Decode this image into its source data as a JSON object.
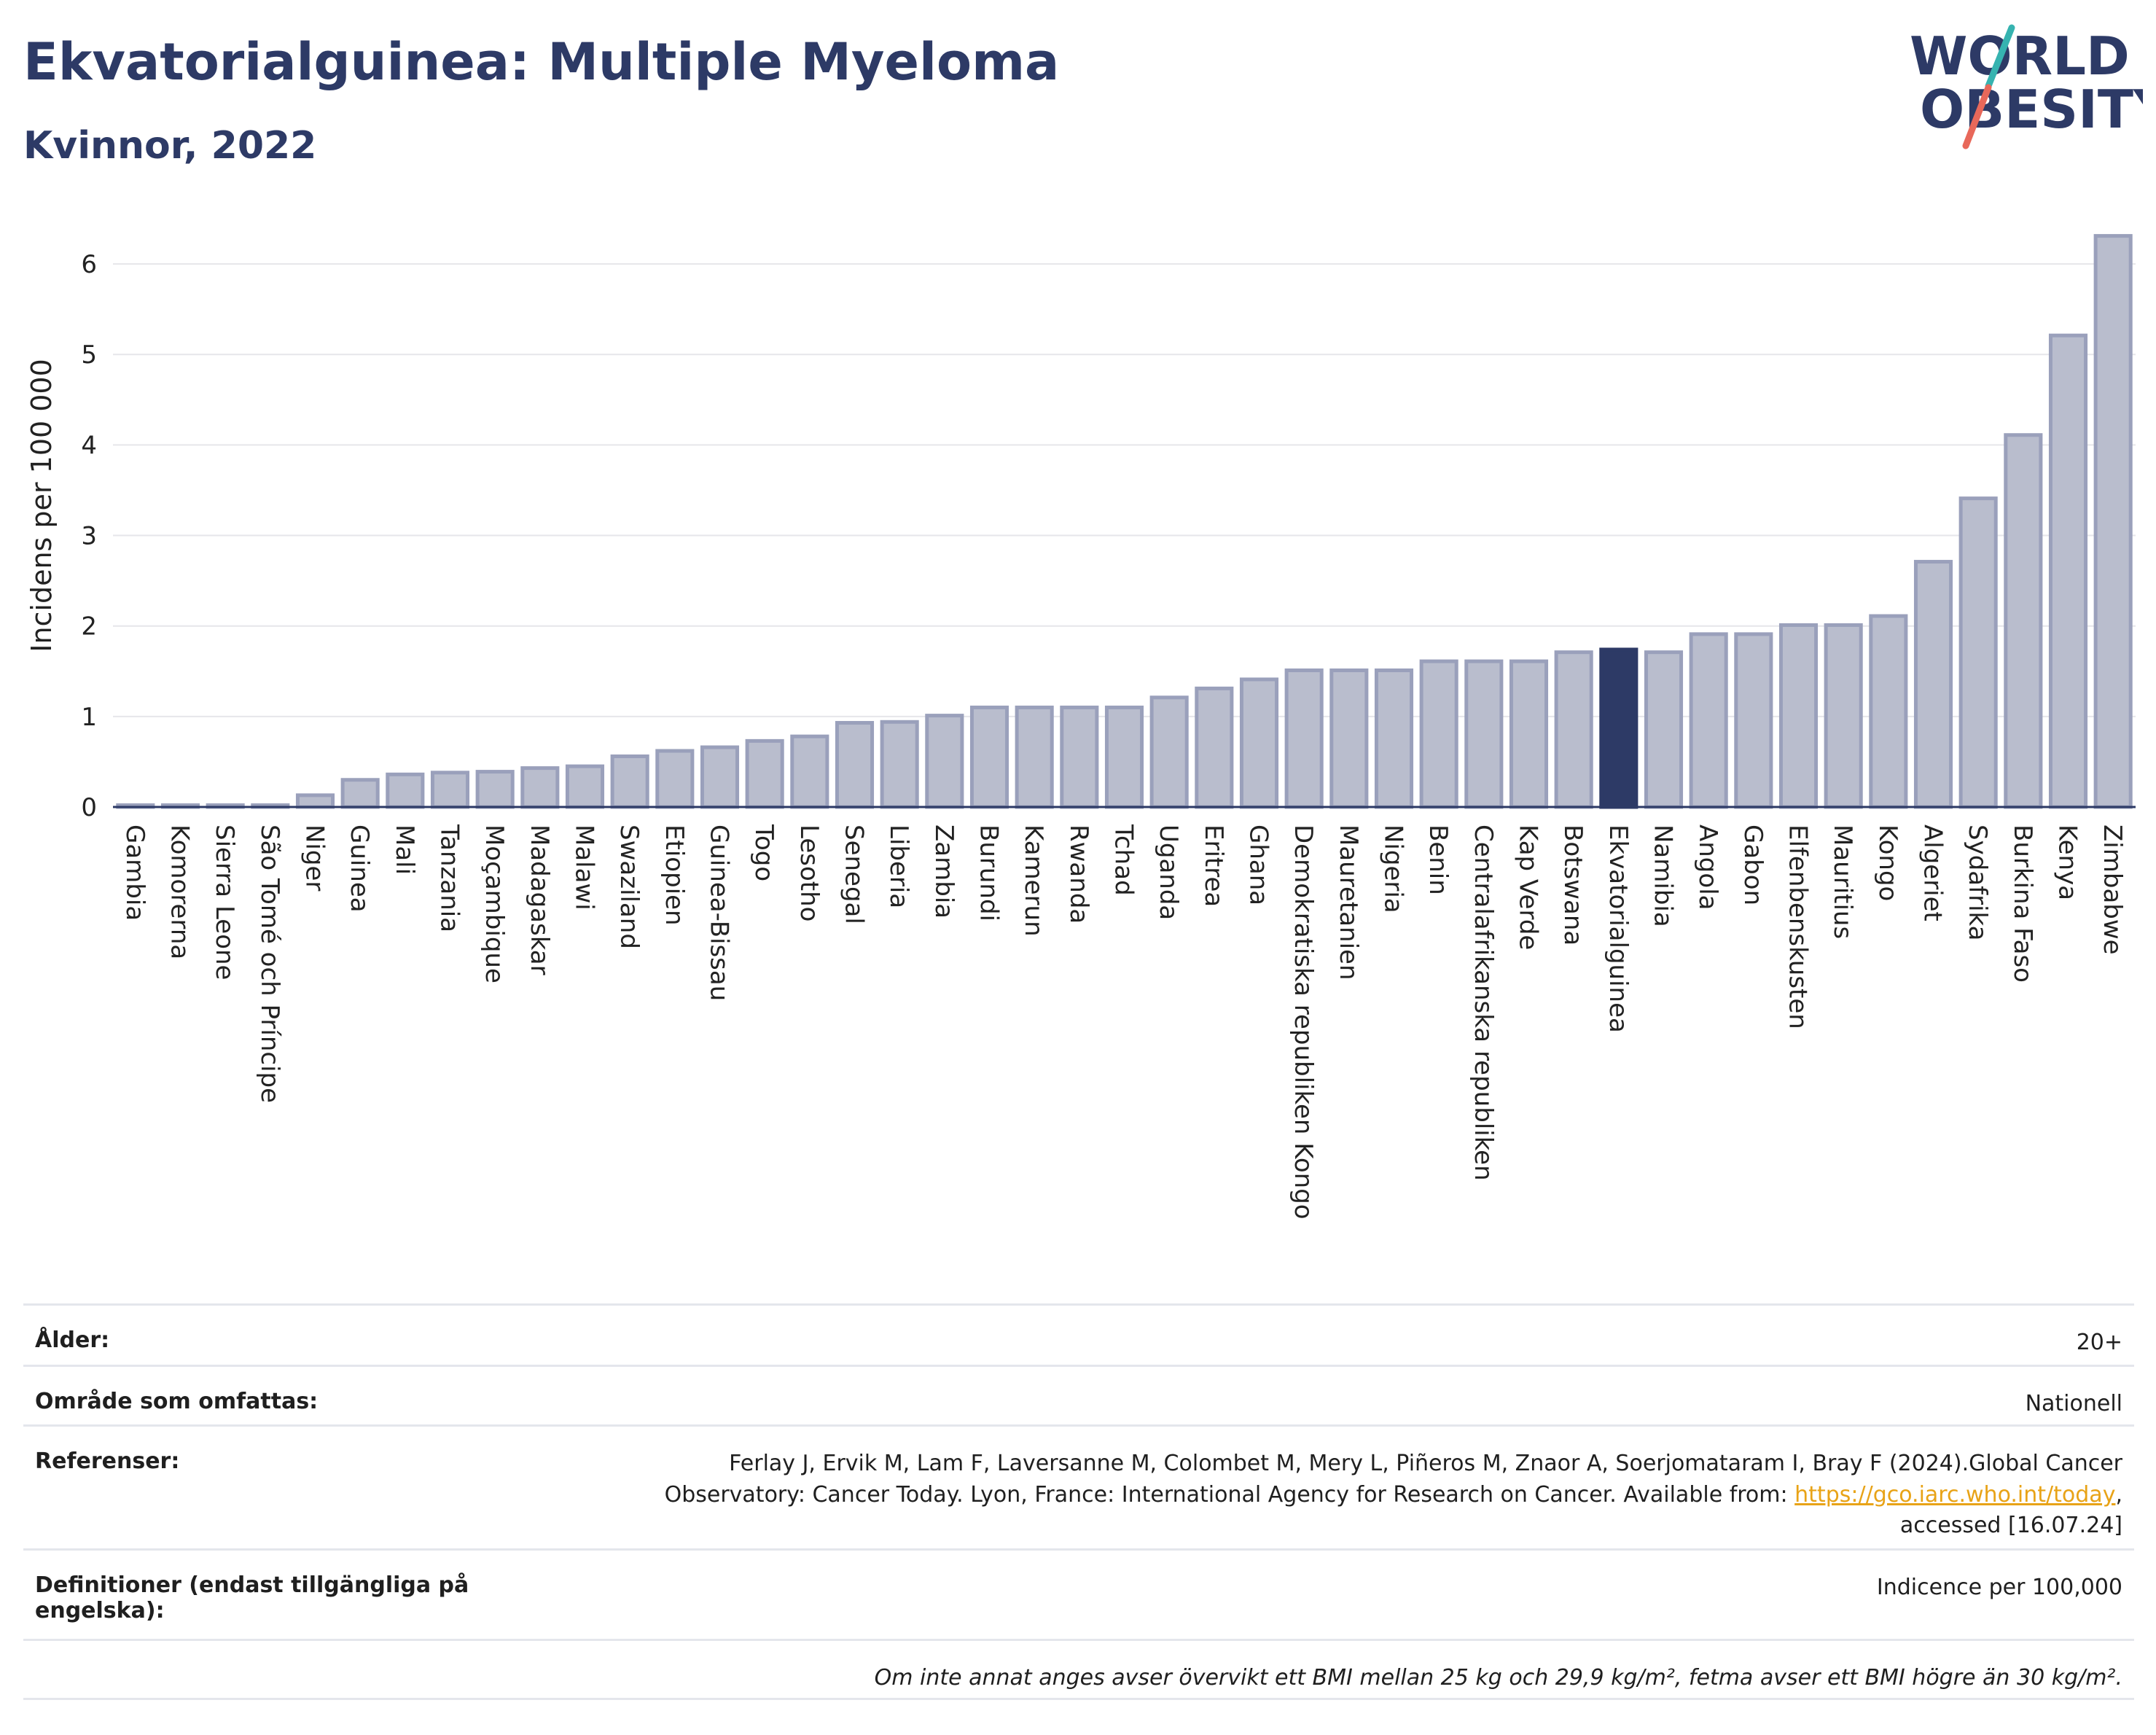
{
  "header": {
    "title": "Ekvatorialguinea: Multiple Myeloma",
    "subtitle": "Kvinnor, 2022"
  },
  "logo": {
    "line1": "WORLD",
    "line2": "OBESITY",
    "colors": {
      "text": "#2d3a66",
      "slash_top": "#36b3b0",
      "slash_bottom": "#e8685a"
    }
  },
  "chart_data": {
    "type": "bar",
    "ylabel": "Incidens per 100 000",
    "ylim": [
      0,
      6.5
    ],
    "yticks": [
      0,
      1,
      2,
      3,
      4,
      5,
      6
    ],
    "grid": true,
    "highlight": "Ekvatorialguinea",
    "colors": {
      "bar": "#b9bdcd",
      "bar_edge": "#9aa0bb",
      "highlight": "#2d3a66"
    },
    "categories": [
      "Gambia",
      "Komorerna",
      "Sierra Leone",
      "São Tomé och Príncipe",
      "Niger",
      "Guinea",
      "Mali",
      "Tanzania",
      "Moçambique",
      "Madagaskar",
      "Malawi",
      "Swaziland",
      "Etiopien",
      "Guinea-Bissau",
      "Togo",
      "Lesotho",
      "Senegal",
      "Liberia",
      "Zambia",
      "Burundi",
      "Kamerun",
      "Rwanda",
      "Tchad",
      "Uganda",
      "Eritrea",
      "Ghana",
      "Demokratiska republiken Kongo",
      "Mauretanien",
      "Nigeria",
      "Benin",
      "Centralafrikanska republiken",
      "Kap Verde",
      "Botswana",
      "Ekvatorialguinea",
      "Namibia",
      "Angola",
      "Gabon",
      "Elfenbenskusten",
      "Mauritius",
      "Kongo",
      "Algeriet",
      "Sydafrika",
      "Burkina Faso",
      "Kenya",
      "Zimbabwe"
    ],
    "values": [
      0.02,
      0.02,
      0.02,
      0.02,
      0.13,
      0.3,
      0.36,
      0.38,
      0.39,
      0.43,
      0.45,
      0.56,
      0.62,
      0.66,
      0.73,
      0.78,
      0.93,
      0.94,
      1.01,
      1.1,
      1.1,
      1.1,
      1.1,
      1.21,
      1.31,
      1.41,
      1.51,
      1.51,
      1.51,
      1.61,
      1.61,
      1.61,
      1.71,
      1.74,
      1.71,
      1.91,
      1.91,
      2.01,
      2.01,
      2.11,
      2.71,
      3.41,
      4.11,
      5.21,
      6.31
    ]
  },
  "meta": {
    "age_label": "Ålder:",
    "age_value": "20+",
    "area_label": "Område som omfattas:",
    "area_value": "Nationell",
    "ref_label": "Referenser:",
    "ref_line1": "Ferlay J, Ervik M, Lam F, Laversanne M, Colombet M, Mery L, Piñeros M, Znaor A, Soerjomataram I, Bray F (2024).Global Cancer",
    "ref_line2": "Observatory: Cancer Today. Lyon, France: International Agency for Research on Cancer. Available from:",
    "ref_link": "https://gco.iarc.who.int/today",
    "ref_line3": "accessed [16.07.24]",
    "def_label": "Definitioner (endast tillgängliga på engelska):",
    "def_value": "Indicence per 100,000",
    "note": "Om inte annat anges avser övervikt ett BMI mellan 25 kg och 29,9 kg/m², fetma avser ett BMI högre än 30 kg/m²."
  }
}
